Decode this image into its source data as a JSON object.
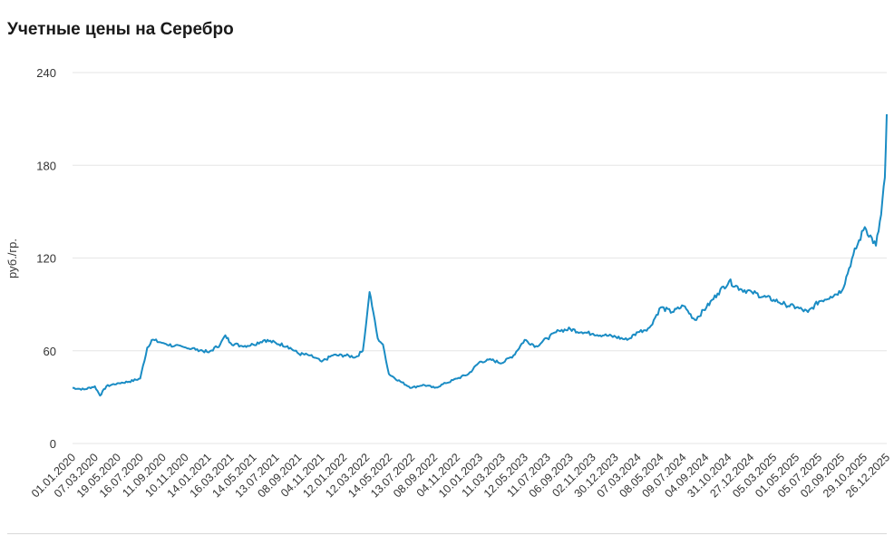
{
  "title": "Учетные цены на Серебро",
  "colors": {
    "line": "#1a8cc4",
    "grid": "#e6e6e6",
    "text": "#333333"
  },
  "chart_data": {
    "type": "line",
    "title": "Учетные цены на Серебро",
    "ylabel": "руб./гр.",
    "xlabel": "",
    "ylim": [
      0,
      240
    ],
    "yticks": [
      0,
      60,
      120,
      180,
      240
    ],
    "grid": true,
    "xticks": [
      "01.01.2020",
      "07.03.2020",
      "19.05.2020",
      "16.07.2020",
      "11.09.2020",
      "10.11.2020",
      "14.01.2021",
      "16.03.2021",
      "14.05.2021",
      "13.07.2021",
      "08.09.2021",
      "04.11.2021",
      "12.01.2022",
      "12.03.2022",
      "14.05.2022",
      "13.07.2022",
      "08.09.2022",
      "04.11.2022",
      "10.01.2023",
      "11.03.2023",
      "12.05.2023",
      "11.07.2023",
      "06.09.2023",
      "02.11.2023",
      "30.12.2023",
      "07.03.2024",
      "08.05.2024",
      "09.07.2024",
      "04.09.2024",
      "31.10.2024",
      "27.12.2024",
      "05.03.2025",
      "01.05.2025",
      "05.07.2025",
      "02.09.2025",
      "29.10.2025",
      "26.12.2025"
    ],
    "series": [
      {
        "x": [
          "01.01.2020",
          "01.02.2020",
          "01.03.2020",
          "15.03.2020",
          "01.04.2020",
          "01.05.2020",
          "01.06.2020",
          "01.07.2020",
          "20.07.2020",
          "01.08.2020",
          "01.09.2020",
          "01.10.2020",
          "01.11.2020",
          "01.12.2020",
          "01.01.2021",
          "01.02.2021",
          "15.02.2021",
          "01.03.2021",
          "01.04.2021",
          "01.05.2021",
          "01.06.2021",
          "01.07.2021",
          "01.08.2021",
          "01.09.2021",
          "01.10.2021",
          "01.11.2021",
          "01.12.2021",
          "01.01.2022",
          "01.02.2022",
          "20.02.2022",
          "01.03.2022",
          "10.03.2022",
          "20.03.2022",
          "01.04.2022",
          "15.04.2022",
          "01.05.2022",
          "01.06.2022",
          "01.07.2022",
          "01.08.2022",
          "01.09.2022",
          "01.10.2022",
          "01.11.2022",
          "01.12.2022",
          "01.01.2023",
          "01.02.2023",
          "01.03.2023",
          "01.04.2023",
          "01.05.2023",
          "01.06.2023",
          "01.07.2023",
          "01.08.2023",
          "01.09.2023",
          "01.10.2023",
          "01.11.2023",
          "01.12.2023",
          "01.01.2024",
          "01.02.2024",
          "01.03.2024",
          "01.04.2024",
          "01.05.2024",
          "01.06.2024",
          "01.07.2024",
          "01.08.2024",
          "01.09.2024",
          "01.10.2024",
          "01.11.2024",
          "01.12.2024",
          "01.01.2025",
          "01.02.2025",
          "01.03.2025",
          "01.04.2025",
          "01.05.2025",
          "01.06.2025",
          "01.07.2025",
          "01.08.2025",
          "01.09.2025",
          "01.10.2025",
          "01.11.2025",
          "01.12.2025",
          "15.12.2025",
          "25.12.2025",
          "30.12.2025"
        ],
        "y": [
          36,
          35,
          37,
          31,
          37,
          39,
          40,
          42,
          62,
          67,
          65,
          63,
          62,
          61,
          59,
          64,
          70,
          65,
          63,
          64,
          67,
          65,
          63,
          58,
          57,
          53,
          57,
          57,
          56,
          60,
          78,
          98,
          85,
          68,
          64,
          45,
          40,
          36,
          38,
          36,
          39,
          42,
          45,
          53,
          54,
          52,
          57,
          67,
          63,
          68,
          73,
          74,
          72,
          71,
          70,
          69,
          67,
          72,
          75,
          88,
          85,
          89,
          80,
          88,
          97,
          105,
          100,
          98,
          95,
          93,
          90,
          88,
          85,
          92,
          95,
          99,
          122,
          140,
          128,
          148,
          172,
          213
        ]
      }
    ]
  }
}
